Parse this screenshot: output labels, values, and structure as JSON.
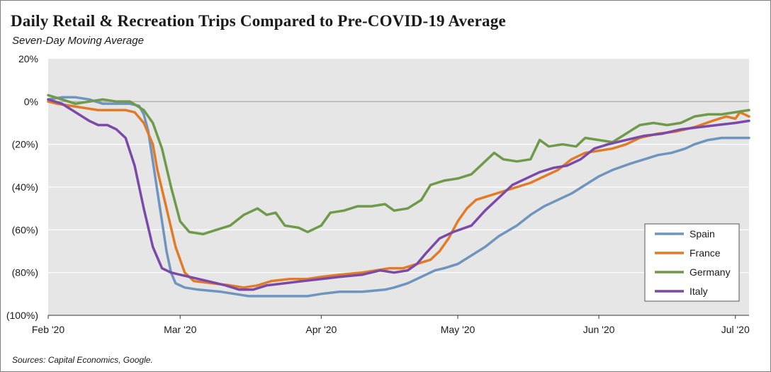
{
  "header": {
    "title": "Daily Retail & Recreation Trips Compared to Pre-COVID-19 Average",
    "subtitle": "Seven-Day Moving Average"
  },
  "footer": {
    "source": "Sources: Capital Economics, Google."
  },
  "chart_data": {
    "type": "line",
    "title": "Daily Retail & Recreation Trips Compared to Pre-COVID-19 Average",
    "subtitle": "Seven-Day Moving Average",
    "xlabel": "",
    "ylabel": "",
    "x_range": [
      "2020-02-01",
      "2020-07-04"
    ],
    "ylim": [
      -100,
      20
    ],
    "y_ticks": [
      20,
      0,
      -20,
      -40,
      -60,
      -80,
      -100
    ],
    "y_tick_labels": [
      "20%",
      "0%",
      "(20%)",
      "(40%)",
      "(60%)",
      "(80%)",
      "(100%)"
    ],
    "x_ticks": [
      "2020-02-01",
      "2020-03-01",
      "2020-04-01",
      "2020-05-01",
      "2020-06-01",
      "2020-07-01"
    ],
    "x_tick_labels": [
      "Feb '20",
      "Mar '20",
      "Apr '20",
      "May '20",
      "Jun '20",
      "Jul '20"
    ],
    "grid": "horizontal",
    "background": "#e6e6e6",
    "legend": {
      "position": "bottom-right"
    },
    "series": [
      {
        "name": "Spain",
        "color": "#6f95bf",
        "points": [
          [
            "2020-02-01",
            1
          ],
          [
            "2020-02-04",
            2
          ],
          [
            "2020-02-07",
            2
          ],
          [
            "2020-02-10",
            1
          ],
          [
            "2020-02-13",
            -1
          ],
          [
            "2020-02-16",
            -1
          ],
          [
            "2020-02-19",
            -1
          ],
          [
            "2020-02-21",
            -2
          ],
          [
            "2020-02-22",
            -6
          ],
          [
            "2020-02-23",
            -14
          ],
          [
            "2020-02-24",
            -28
          ],
          [
            "2020-02-25",
            -42
          ],
          [
            "2020-02-26",
            -56
          ],
          [
            "2020-02-27",
            -70
          ],
          [
            "2020-02-28",
            -80
          ],
          [
            "2020-02-29",
            -85
          ],
          [
            "2020-03-02",
            -87
          ],
          [
            "2020-03-05",
            -88
          ],
          [
            "2020-03-10",
            -89
          ],
          [
            "2020-03-13",
            -90
          ],
          [
            "2020-03-16",
            -91
          ],
          [
            "2020-03-20",
            -91
          ],
          [
            "2020-03-25",
            -91
          ],
          [
            "2020-03-29",
            -91
          ],
          [
            "2020-04-01",
            -90
          ],
          [
            "2020-04-05",
            -89
          ],
          [
            "2020-04-10",
            -89
          ],
          [
            "2020-04-15",
            -88
          ],
          [
            "2020-04-17",
            -87
          ],
          [
            "2020-04-20",
            -85
          ],
          [
            "2020-04-23",
            -82
          ],
          [
            "2020-04-26",
            -79
          ],
          [
            "2020-04-28",
            -78
          ],
          [
            "2020-05-01",
            -76
          ],
          [
            "2020-05-04",
            -72
          ],
          [
            "2020-05-07",
            -68
          ],
          [
            "2020-05-10",
            -63
          ],
          [
            "2020-05-14",
            -58
          ],
          [
            "2020-05-17",
            -53
          ],
          [
            "2020-05-20",
            -49
          ],
          [
            "2020-05-23",
            -46
          ],
          [
            "2020-05-26",
            -43
          ],
          [
            "2020-05-29",
            -39
          ],
          [
            "2020-06-01",
            -35
          ],
          [
            "2020-06-04",
            -32
          ],
          [
            "2020-06-08",
            -29
          ],
          [
            "2020-06-11",
            -27
          ],
          [
            "2020-06-14",
            -25
          ],
          [
            "2020-06-17",
            -24
          ],
          [
            "2020-06-20",
            -22
          ],
          [
            "2020-06-22",
            -20
          ],
          [
            "2020-06-25",
            -18
          ],
          [
            "2020-06-28",
            -17
          ],
          [
            "2020-07-01",
            -17
          ],
          [
            "2020-07-04",
            -17
          ]
        ]
      },
      {
        "name": "France",
        "color": "#e07b28",
        "points": [
          [
            "2020-02-01",
            0
          ],
          [
            "2020-02-03",
            -1
          ],
          [
            "2020-02-06",
            -2
          ],
          [
            "2020-02-09",
            -3
          ],
          [
            "2020-02-12",
            -4
          ],
          [
            "2020-02-15",
            -4
          ],
          [
            "2020-02-18",
            -4
          ],
          [
            "2020-02-20",
            -5
          ],
          [
            "2020-02-22",
            -10
          ],
          [
            "2020-02-24",
            -20
          ],
          [
            "2020-02-25",
            -32
          ],
          [
            "2020-02-27",
            -50
          ],
          [
            "2020-02-29",
            -68
          ],
          [
            "2020-03-02",
            -80
          ],
          [
            "2020-03-04",
            -84
          ],
          [
            "2020-03-08",
            -85
          ],
          [
            "2020-03-12",
            -86
          ],
          [
            "2020-03-15",
            -87
          ],
          [
            "2020-03-18",
            -86
          ],
          [
            "2020-03-21",
            -84
          ],
          [
            "2020-03-25",
            -83
          ],
          [
            "2020-03-29",
            -83
          ],
          [
            "2020-04-01",
            -82
          ],
          [
            "2020-04-05",
            -81
          ],
          [
            "2020-04-10",
            -80
          ],
          [
            "2020-04-13",
            -79
          ],
          [
            "2020-04-16",
            -78
          ],
          [
            "2020-04-19",
            -78
          ],
          [
            "2020-04-22",
            -76
          ],
          [
            "2020-04-25",
            -74
          ],
          [
            "2020-04-27",
            -70
          ],
          [
            "2020-04-29",
            -64
          ],
          [
            "2020-05-01",
            -56
          ],
          [
            "2020-05-03",
            -50
          ],
          [
            "2020-05-05",
            -46
          ],
          [
            "2020-05-08",
            -44
          ],
          [
            "2020-05-11",
            -42
          ],
          [
            "2020-05-14",
            -40
          ],
          [
            "2020-05-17",
            -38
          ],
          [
            "2020-05-20",
            -35
          ],
          [
            "2020-05-23",
            -32
          ],
          [
            "2020-05-26",
            -27
          ],
          [
            "2020-05-29",
            -24
          ],
          [
            "2020-06-01",
            -23
          ],
          [
            "2020-06-04",
            -22
          ],
          [
            "2020-06-07",
            -20
          ],
          [
            "2020-06-10",
            -17
          ],
          [
            "2020-06-14",
            -15
          ],
          [
            "2020-06-18",
            -14
          ],
          [
            "2020-06-22",
            -12
          ],
          [
            "2020-06-26",
            -9
          ],
          [
            "2020-06-29",
            -7
          ],
          [
            "2020-07-01",
            -8
          ],
          [
            "2020-07-02",
            -5
          ],
          [
            "2020-07-04",
            -7
          ]
        ]
      },
      {
        "name": "Germany",
        "color": "#6e9a4a",
        "points": [
          [
            "2020-02-01",
            3
          ],
          [
            "2020-02-04",
            1
          ],
          [
            "2020-02-07",
            -1
          ],
          [
            "2020-02-10",
            0
          ],
          [
            "2020-02-13",
            1
          ],
          [
            "2020-02-16",
            0
          ],
          [
            "2020-02-19",
            0
          ],
          [
            "2020-02-22",
            -4
          ],
          [
            "2020-02-24",
            -10
          ],
          [
            "2020-02-26",
            -22
          ],
          [
            "2020-02-28",
            -40
          ],
          [
            "2020-03-01",
            -56
          ],
          [
            "2020-03-03",
            -61
          ],
          [
            "2020-03-06",
            -62
          ],
          [
            "2020-03-09",
            -60
          ],
          [
            "2020-03-12",
            -58
          ],
          [
            "2020-03-15",
            -53
          ],
          [
            "2020-03-18",
            -50
          ],
          [
            "2020-03-20",
            -53
          ],
          [
            "2020-03-22",
            -52
          ],
          [
            "2020-03-24",
            -58
          ],
          [
            "2020-03-27",
            -59
          ],
          [
            "2020-03-29",
            -61
          ],
          [
            "2020-04-01",
            -58
          ],
          [
            "2020-04-03",
            -52
          ],
          [
            "2020-04-06",
            -51
          ],
          [
            "2020-04-09",
            -49
          ],
          [
            "2020-04-12",
            -49
          ],
          [
            "2020-04-15",
            -48
          ],
          [
            "2020-04-17",
            -51
          ],
          [
            "2020-04-20",
            -50
          ],
          [
            "2020-04-23",
            -46
          ],
          [
            "2020-04-25",
            -39
          ],
          [
            "2020-04-28",
            -37
          ],
          [
            "2020-05-01",
            -36
          ],
          [
            "2020-05-04",
            -34
          ],
          [
            "2020-05-07",
            -28
          ],
          [
            "2020-05-09",
            -24
          ],
          [
            "2020-05-11",
            -27
          ],
          [
            "2020-05-14",
            -28
          ],
          [
            "2020-05-17",
            -27
          ],
          [
            "2020-05-19",
            -18
          ],
          [
            "2020-05-21",
            -21
          ],
          [
            "2020-05-24",
            -20
          ],
          [
            "2020-05-27",
            -21
          ],
          [
            "2020-05-29",
            -17
          ],
          [
            "2020-06-01",
            -18
          ],
          [
            "2020-06-04",
            -19
          ],
          [
            "2020-06-07",
            -15
          ],
          [
            "2020-06-10",
            -11
          ],
          [
            "2020-06-13",
            -10
          ],
          [
            "2020-06-16",
            -11
          ],
          [
            "2020-06-19",
            -10
          ],
          [
            "2020-06-22",
            -7
          ],
          [
            "2020-06-25",
            -6
          ],
          [
            "2020-06-28",
            -6
          ],
          [
            "2020-07-01",
            -5
          ],
          [
            "2020-07-04",
            -4
          ]
        ]
      },
      {
        "name": "Italy",
        "color": "#7b4aa8",
        "points": [
          [
            "2020-02-01",
            1
          ],
          [
            "2020-02-04",
            -1
          ],
          [
            "2020-02-07",
            -5
          ],
          [
            "2020-02-10",
            -9
          ],
          [
            "2020-02-12",
            -11
          ],
          [
            "2020-02-14",
            -11
          ],
          [
            "2020-02-16",
            -13
          ],
          [
            "2020-02-18",
            -17
          ],
          [
            "2020-02-20",
            -30
          ],
          [
            "2020-02-22",
            -50
          ],
          [
            "2020-02-24",
            -68
          ],
          [
            "2020-02-26",
            -78
          ],
          [
            "2020-02-28",
            -80
          ],
          [
            "2020-03-03",
            -82
          ],
          [
            "2020-03-07",
            -84
          ],
          [
            "2020-03-11",
            -86
          ],
          [
            "2020-03-14",
            -88
          ],
          [
            "2020-03-17",
            -88
          ],
          [
            "2020-03-20",
            -86
          ],
          [
            "2020-03-24",
            -85
          ],
          [
            "2020-03-28",
            -84
          ],
          [
            "2020-04-01",
            -83
          ],
          [
            "2020-04-05",
            -82
          ],
          [
            "2020-04-10",
            -81
          ],
          [
            "2020-04-14",
            -79
          ],
          [
            "2020-04-17",
            -80
          ],
          [
            "2020-04-20",
            -79
          ],
          [
            "2020-04-22",
            -76
          ],
          [
            "2020-04-24",
            -71
          ],
          [
            "2020-04-27",
            -64
          ],
          [
            "2020-04-30",
            -61
          ],
          [
            "2020-05-04",
            -58
          ],
          [
            "2020-05-07",
            -51
          ],
          [
            "2020-05-10",
            -45
          ],
          [
            "2020-05-13",
            -39
          ],
          [
            "2020-05-16",
            -36
          ],
          [
            "2020-05-19",
            -33
          ],
          [
            "2020-05-22",
            -31
          ],
          [
            "2020-05-25",
            -30
          ],
          [
            "2020-05-28",
            -27
          ],
          [
            "2020-05-31",
            -22
          ],
          [
            "2020-06-03",
            -20
          ],
          [
            "2020-06-07",
            -18
          ],
          [
            "2020-06-11",
            -16
          ],
          [
            "2020-06-15",
            -15
          ],
          [
            "2020-06-19",
            -13
          ],
          [
            "2020-06-23",
            -12
          ],
          [
            "2020-06-27",
            -11
          ],
          [
            "2020-07-01",
            -10
          ],
          [
            "2020-07-04",
            -9
          ]
        ]
      }
    ]
  }
}
